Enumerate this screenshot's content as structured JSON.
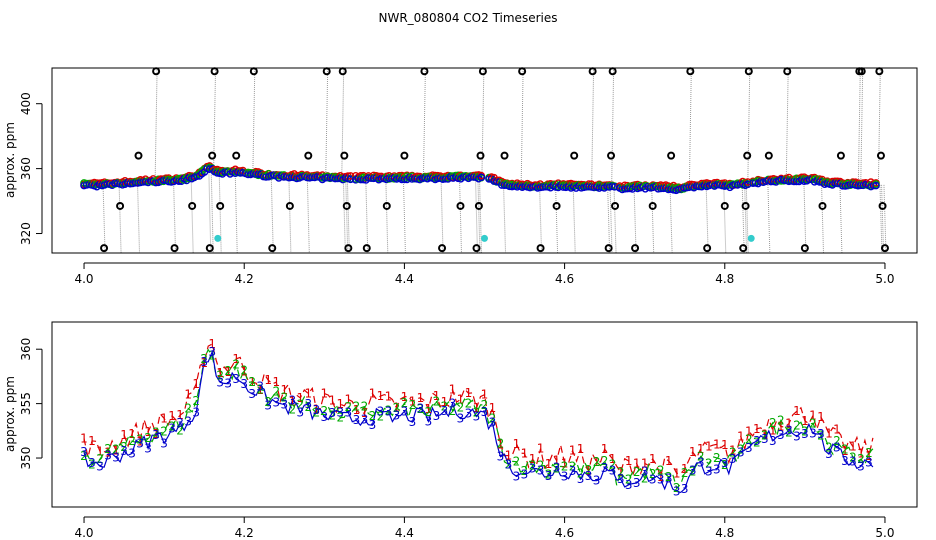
{
  "chart_data": {
    "type": "scatter",
    "title": "NWR_080804  CO2 Timeseries",
    "colors": {
      "bg": "#ffffff",
      "axis": "#000000",
      "drop_line": "#9a9a9a",
      "series1": "#dd0000",
      "series2": "#00aa00",
      "series3": "#0000cc",
      "outlier": "#000000",
      "flag": "#33cccc"
    },
    "panels": [
      {
        "id": "top",
        "ylabel": "approx. ppm",
        "xlim": [
          3.96,
          5.04
        ],
        "ylim": [
          308,
          422
        ],
        "x_ticks": [
          4.0,
          4.2,
          4.4,
          4.6,
          4.8,
          5.0
        ],
        "x_tick_labels": [
          "4.0",
          "4.2",
          "4.4",
          "4.6",
          "4.8",
          "5.0"
        ],
        "y_ticks": [
          320,
          360,
          400
        ],
        "y_tick_labels": [
          "320",
          "360",
          "400"
        ],
        "outliers": [
          {
            "x": 4.025,
            "y": 311
          },
          {
            "x": 4.045,
            "y": 337
          },
          {
            "x": 4.068,
            "y": 368
          },
          {
            "x": 4.09,
            "y": 420
          },
          {
            "x": 4.113,
            "y": 311
          },
          {
            "x": 4.135,
            "y": 337
          },
          {
            "x": 4.157,
            "y": 311
          },
          {
            "x": 4.16,
            "y": 368
          },
          {
            "x": 4.163,
            "y": 420
          },
          {
            "x": 4.17,
            "y": 337
          },
          {
            "x": 4.19,
            "y": 368
          },
          {
            "x": 4.212,
            "y": 420
          },
          {
            "x": 4.235,
            "y": 311
          },
          {
            "x": 4.257,
            "y": 337
          },
          {
            "x": 4.28,
            "y": 368
          },
          {
            "x": 4.303,
            "y": 420
          },
          {
            "x": 4.323,
            "y": 420
          },
          {
            "x": 4.325,
            "y": 368
          },
          {
            "x": 4.328,
            "y": 337
          },
          {
            "x": 4.33,
            "y": 311
          },
          {
            "x": 4.353,
            "y": 311
          },
          {
            "x": 4.378,
            "y": 337
          },
          {
            "x": 4.4,
            "y": 368
          },
          {
            "x": 4.425,
            "y": 420
          },
          {
            "x": 4.447,
            "y": 311
          },
          {
            "x": 4.47,
            "y": 337
          },
          {
            "x": 4.49,
            "y": 311
          },
          {
            "x": 4.493,
            "y": 337
          },
          {
            "x": 4.495,
            "y": 368
          },
          {
            "x": 4.498,
            "y": 420
          },
          {
            "x": 4.525,
            "y": 368
          },
          {
            "x": 4.547,
            "y": 420
          },
          {
            "x": 4.57,
            "y": 311
          },
          {
            "x": 4.59,
            "y": 337
          },
          {
            "x": 4.612,
            "y": 368
          },
          {
            "x": 4.635,
            "y": 420
          },
          {
            "x": 4.655,
            "y": 311
          },
          {
            "x": 4.658,
            "y": 368
          },
          {
            "x": 4.66,
            "y": 420
          },
          {
            "x": 4.663,
            "y": 337
          },
          {
            "x": 4.688,
            "y": 311
          },
          {
            "x": 4.71,
            "y": 337
          },
          {
            "x": 4.733,
            "y": 368
          },
          {
            "x": 4.757,
            "y": 420
          },
          {
            "x": 4.778,
            "y": 311
          },
          {
            "x": 4.8,
            "y": 337
          },
          {
            "x": 4.823,
            "y": 311
          },
          {
            "x": 4.826,
            "y": 337
          },
          {
            "x": 4.828,
            "y": 368
          },
          {
            "x": 4.83,
            "y": 420
          },
          {
            "x": 4.855,
            "y": 368
          },
          {
            "x": 4.878,
            "y": 420
          },
          {
            "x": 4.9,
            "y": 311
          },
          {
            "x": 4.922,
            "y": 337
          },
          {
            "x": 4.945,
            "y": 368
          },
          {
            "x": 4.968,
            "y": 420
          },
          {
            "x": 4.971,
            "y": 420
          },
          {
            "x": 4.993,
            "y": 420
          },
          {
            "x": 4.995,
            "y": 368
          },
          {
            "x": 4.997,
            "y": 337
          },
          {
            "x": 5.0,
            "y": 311
          }
        ],
        "flagged": [
          {
            "x": 4.167,
            "y": 317
          },
          {
            "x": 4.5,
            "y": 317
          },
          {
            "x": 4.833,
            "y": 317
          }
        ]
      },
      {
        "id": "bottom",
        "ylabel": "approx. ppm",
        "xlim": [
          3.96,
          5.04
        ],
        "ylim": [
          345.5,
          362.5
        ],
        "x_ticks": [
          4.0,
          4.2,
          4.4,
          4.6,
          4.8,
          5.0
        ],
        "x_tick_labels": [
          "4.0",
          "4.2",
          "4.4",
          "4.6",
          "4.8",
          "5.0"
        ],
        "y_ticks": [
          350,
          355,
          360
        ],
        "y_tick_labels": [
          "350",
          "355",
          "360"
        ]
      }
    ],
    "profile": [
      [
        4.0,
        350.2
      ],
      [
        4.02,
        349.8
      ],
      [
        4.04,
        350.6
      ],
      [
        4.06,
        351.2
      ],
      [
        4.08,
        352.0
      ],
      [
        4.1,
        352.5
      ],
      [
        4.12,
        353.0
      ],
      [
        4.14,
        355.0
      ],
      [
        4.152,
        359.5
      ],
      [
        4.158,
        360.2
      ],
      [
        4.165,
        358.0
      ],
      [
        4.175,
        357.3
      ],
      [
        4.19,
        358.0
      ],
      [
        4.205,
        357.0
      ],
      [
        4.225,
        356.0
      ],
      [
        4.245,
        355.2
      ],
      [
        4.265,
        355.0
      ],
      [
        4.285,
        354.6
      ],
      [
        4.305,
        354.2
      ],
      [
        4.325,
        354.0
      ],
      [
        4.345,
        354.0
      ],
      [
        4.365,
        354.2
      ],
      [
        4.385,
        354.0
      ],
      [
        4.405,
        354.3
      ],
      [
        4.425,
        354.2
      ],
      [
        4.445,
        354.4
      ],
      [
        4.465,
        354.8
      ],
      [
        4.485,
        354.6
      ],
      [
        4.5,
        354.3
      ],
      [
        4.512,
        353.0
      ],
      [
        4.522,
        350.5
      ],
      [
        4.535,
        349.5
      ],
      [
        4.555,
        349.2
      ],
      [
        4.575,
        349.0
      ],
      [
        4.595,
        349.4
      ],
      [
        4.615,
        349.0
      ],
      [
        4.635,
        348.8
      ],
      [
        4.655,
        349.2
      ],
      [
        4.665,
        348.0
      ],
      [
        4.685,
        348.5
      ],
      [
        4.705,
        348.7
      ],
      [
        4.725,
        348.2
      ],
      [
        4.745,
        347.5
      ],
      [
        4.765,
        349.5
      ],
      [
        4.785,
        349.8
      ],
      [
        4.805,
        349.5
      ],
      [
        4.82,
        350.2
      ],
      [
        4.835,
        351.5
      ],
      [
        4.85,
        352.2
      ],
      [
        4.87,
        352.8
      ],
      [
        4.89,
        353.0
      ],
      [
        4.91,
        353.2
      ],
      [
        4.925,
        351.5
      ],
      [
        4.945,
        350.5
      ],
      [
        4.965,
        350.0
      ],
      [
        4.985,
        350.0
      ]
    ],
    "series": [
      {
        "name": "1",
        "label": "1",
        "color_key": "series1"
      },
      {
        "name": "2",
        "label": "2",
        "color_key": "series2"
      },
      {
        "name": "3",
        "label": "3",
        "color_key": "series3"
      }
    ]
  }
}
